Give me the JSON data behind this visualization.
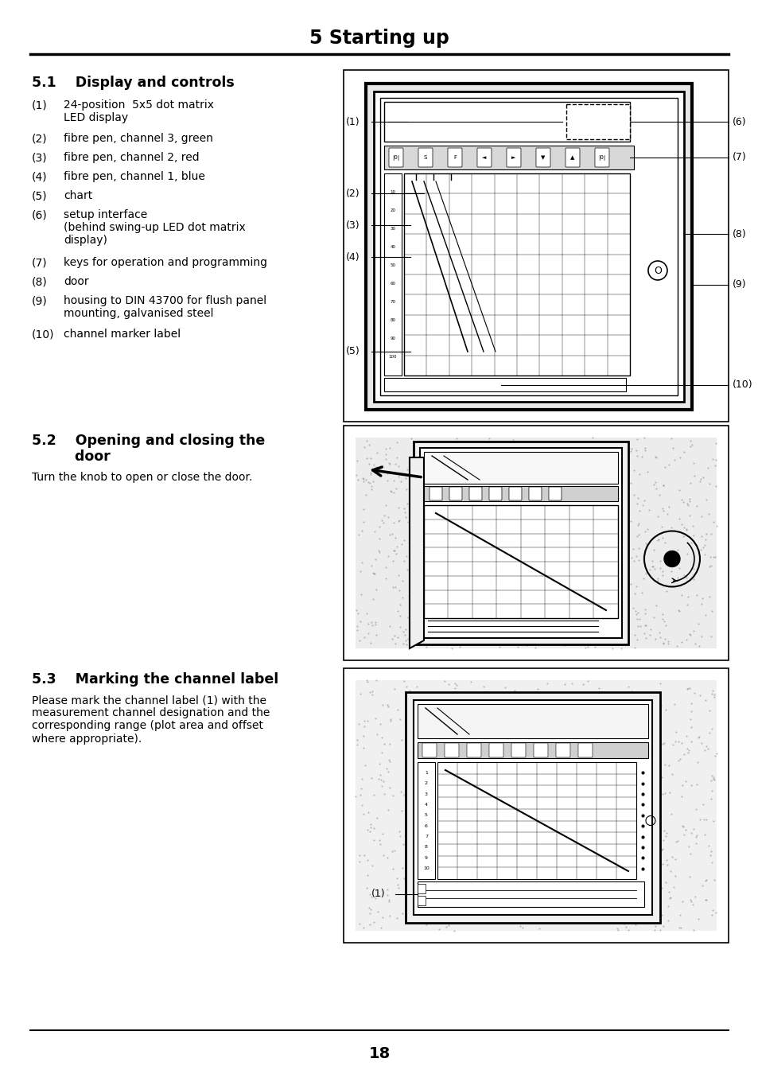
{
  "title": "5 Starting up",
  "s1_title": "5.1    Display and controls",
  "s1_items": [
    [
      "(1)",
      "24-position  5x5 dot matrix\nLED display"
    ],
    [
      "(2)",
      "fibre pen, channel 3, green"
    ],
    [
      "(3)",
      "fibre pen, channel 2, red"
    ],
    [
      "(4)",
      "fibre pen, channel 1, blue"
    ],
    [
      "(5)",
      "chart"
    ],
    [
      "(6)",
      "setup interface\n(behind swing-up LED dot matrix\ndisplay)"
    ],
    [
      "(7)",
      "keys for operation and programming"
    ],
    [
      "(8)",
      "door"
    ],
    [
      "(9)",
      "housing to DIN 43700 for flush panel\nmounting, galvanised steel"
    ],
    [
      "(10)",
      "channel marker label"
    ]
  ],
  "s2_title_line1": "5.2    Opening and closing the",
  "s2_title_line2": "         door",
  "s2_text": "Turn the knob to open or close the door.",
  "s3_title": "5.3    Marking the channel label",
  "s3_text": "Please mark the channel label (1) with the\nmeasurement channel designation and the\ncorresponding range (plot area and offset\nwhere appropriate).",
  "page_number": "18",
  "bg_color": "#ffffff",
  "text_color": "#000000",
  "title_fontsize": 17,
  "s_title_fontsize": 12.5,
  "body_fontsize": 10,
  "label_fontsize": 9
}
